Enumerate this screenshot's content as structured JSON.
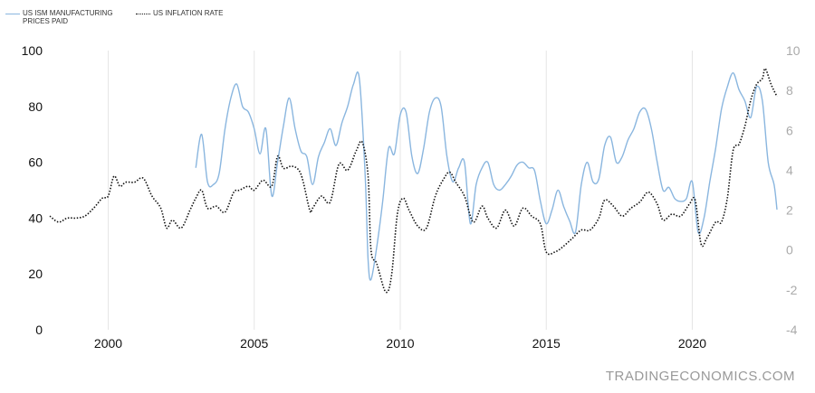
{
  "legend": {
    "series1_label": "US ISM MANUFACTURING PRICES PAID",
    "series2_label": "US INFLATION RATE"
  },
  "watermark": "TRADINGECONOMICS.COM",
  "colors": {
    "series1": "#8ab6df",
    "series2": "#111111",
    "grid": "#e6e6e6"
  },
  "chart_data": {
    "type": "line",
    "title": "",
    "xlabel": "",
    "ylabel": "",
    "xlim": [
      1998,
      2022.9
    ],
    "x_ticks": [
      2000,
      2005,
      2010,
      2015,
      2020
    ],
    "y_left": {
      "ticks": [
        0,
        20,
        40,
        60,
        80,
        100
      ],
      "lim": [
        0,
        100
      ]
    },
    "y_right": {
      "ticks": [
        -4,
        -2,
        0,
        2,
        4,
        6,
        8,
        10
      ],
      "lim": [
        -4,
        10
      ]
    },
    "grid": "vertical",
    "legend_position": "top-left",
    "series": [
      {
        "name": "US ISM MANUFACTURING PRICES PAID",
        "axis": "left",
        "points": [
          [
            2003.0,
            58
          ],
          [
            2003.2,
            70
          ],
          [
            2003.4,
            53
          ],
          [
            2003.6,
            52
          ],
          [
            2003.8,
            56
          ],
          [
            2004.0,
            72
          ],
          [
            2004.2,
            83
          ],
          [
            2004.4,
            88
          ],
          [
            2004.6,
            80
          ],
          [
            2004.8,
            78
          ],
          [
            2005.0,
            72
          ],
          [
            2005.2,
            63
          ],
          [
            2005.4,
            72
          ],
          [
            2005.6,
            48
          ],
          [
            2005.8,
            60
          ],
          [
            2006.0,
            73
          ],
          [
            2006.2,
            83
          ],
          [
            2006.4,
            72
          ],
          [
            2006.6,
            64
          ],
          [
            2006.8,
            62
          ],
          [
            2007.0,
            52
          ],
          [
            2007.2,
            62
          ],
          [
            2007.4,
            67
          ],
          [
            2007.6,
            72
          ],
          [
            2007.8,
            66
          ],
          [
            2008.0,
            74
          ],
          [
            2008.2,
            80
          ],
          [
            2008.4,
            88
          ],
          [
            2008.6,
            90
          ],
          [
            2008.8,
            55
          ],
          [
            2008.9,
            25
          ],
          [
            2009.0,
            18
          ],
          [
            2009.2,
            30
          ],
          [
            2009.4,
            46
          ],
          [
            2009.6,
            65
          ],
          [
            2009.8,
            63
          ],
          [
            2010.0,
            77
          ],
          [
            2010.2,
            78
          ],
          [
            2010.4,
            62
          ],
          [
            2010.6,
            56
          ],
          [
            2010.8,
            65
          ],
          [
            2011.0,
            78
          ],
          [
            2011.2,
            83
          ],
          [
            2011.4,
            80
          ],
          [
            2011.6,
            62
          ],
          [
            2011.8,
            53
          ],
          [
            2012.0,
            58
          ],
          [
            2012.2,
            60
          ],
          [
            2012.4,
            38
          ],
          [
            2012.6,
            52
          ],
          [
            2012.8,
            58
          ],
          [
            2013.0,
            60
          ],
          [
            2013.2,
            52
          ],
          [
            2013.4,
            50
          ],
          [
            2013.6,
            52
          ],
          [
            2013.8,
            55
          ],
          [
            2014.0,
            59
          ],
          [
            2014.2,
            60
          ],
          [
            2014.4,
            58
          ],
          [
            2014.6,
            57
          ],
          [
            2014.8,
            46
          ],
          [
            2015.0,
            38
          ],
          [
            2015.2,
            43
          ],
          [
            2015.4,
            50
          ],
          [
            2015.6,
            44
          ],
          [
            2015.8,
            39
          ],
          [
            2016.0,
            35
          ],
          [
            2016.2,
            52
          ],
          [
            2016.4,
            60
          ],
          [
            2016.6,
            53
          ],
          [
            2016.8,
            54
          ],
          [
            2017.0,
            66
          ],
          [
            2017.2,
            69
          ],
          [
            2017.4,
            60
          ],
          [
            2017.6,
            62
          ],
          [
            2017.8,
            68
          ],
          [
            2018.0,
            72
          ],
          [
            2018.2,
            78
          ],
          [
            2018.4,
            79
          ],
          [
            2018.6,
            72
          ],
          [
            2018.8,
            60
          ],
          [
            2019.0,
            50
          ],
          [
            2019.2,
            51
          ],
          [
            2019.4,
            47
          ],
          [
            2019.6,
            46
          ],
          [
            2019.8,
            47
          ],
          [
            2020.0,
            53
          ],
          [
            2020.2,
            35
          ],
          [
            2020.4,
            40
          ],
          [
            2020.6,
            53
          ],
          [
            2020.8,
            65
          ],
          [
            2021.0,
            79
          ],
          [
            2021.2,
            87
          ],
          [
            2021.4,
            92
          ],
          [
            2021.6,
            86
          ],
          [
            2021.8,
            82
          ],
          [
            2022.0,
            76
          ],
          [
            2022.2,
            87
          ],
          [
            2022.4,
            82
          ],
          [
            2022.6,
            60
          ],
          [
            2022.8,
            52
          ],
          [
            2022.9,
            43
          ]
        ]
      },
      {
        "name": "US INFLATION RATE",
        "axis": "right",
        "points": [
          [
            1998.0,
            1.7
          ],
          [
            1998.3,
            1.4
          ],
          [
            1998.6,
            1.6
          ],
          [
            1998.9,
            1.6
          ],
          [
            1999.2,
            1.7
          ],
          [
            1999.5,
            2.1
          ],
          [
            1999.8,
            2.6
          ],
          [
            2000.0,
            2.7
          ],
          [
            2000.2,
            3.7
          ],
          [
            2000.4,
            3.2
          ],
          [
            2000.6,
            3.4
          ],
          [
            2000.9,
            3.4
          ],
          [
            2001.2,
            3.6
          ],
          [
            2001.5,
            2.7
          ],
          [
            2001.8,
            2.1
          ],
          [
            2002.0,
            1.1
          ],
          [
            2002.2,
            1.5
          ],
          [
            2002.5,
            1.1
          ],
          [
            2002.8,
            2.0
          ],
          [
            2003.0,
            2.6
          ],
          [
            2003.2,
            3.0
          ],
          [
            2003.4,
            2.1
          ],
          [
            2003.7,
            2.2
          ],
          [
            2004.0,
            1.9
          ],
          [
            2004.3,
            2.9
          ],
          [
            2004.5,
            3.0
          ],
          [
            2004.8,
            3.2
          ],
          [
            2005.0,
            3.0
          ],
          [
            2005.3,
            3.5
          ],
          [
            2005.6,
            3.2
          ],
          [
            2005.8,
            4.7
          ],
          [
            2006.0,
            4.1
          ],
          [
            2006.3,
            4.2
          ],
          [
            2006.6,
            3.8
          ],
          [
            2006.9,
            2.0
          ],
          [
            2007.0,
            2.1
          ],
          [
            2007.3,
            2.7
          ],
          [
            2007.6,
            2.4
          ],
          [
            2007.9,
            4.3
          ],
          [
            2008.2,
            4.0
          ],
          [
            2008.5,
            5.0
          ],
          [
            2008.7,
            5.4
          ],
          [
            2008.9,
            3.7
          ],
          [
            2009.0,
            0.0
          ],
          [
            2009.2,
            -0.7
          ],
          [
            2009.5,
            -2.1
          ],
          [
            2009.7,
            -1.3
          ],
          [
            2009.9,
            1.8
          ],
          [
            2010.1,
            2.6
          ],
          [
            2010.3,
            2.0
          ],
          [
            2010.6,
            1.2
          ],
          [
            2010.9,
            1.1
          ],
          [
            2011.2,
            2.7
          ],
          [
            2011.5,
            3.6
          ],
          [
            2011.7,
            3.9
          ],
          [
            2011.9,
            3.4
          ],
          [
            2012.2,
            2.7
          ],
          [
            2012.5,
            1.4
          ],
          [
            2012.8,
            2.2
          ],
          [
            2013.0,
            1.6
          ],
          [
            2013.3,
            1.1
          ],
          [
            2013.6,
            2.0
          ],
          [
            2013.9,
            1.2
          ],
          [
            2014.2,
            2.1
          ],
          [
            2014.5,
            1.7
          ],
          [
            2014.8,
            1.3
          ],
          [
            2015.0,
            -0.1
          ],
          [
            2015.3,
            -0.1
          ],
          [
            2015.6,
            0.2
          ],
          [
            2015.9,
            0.6
          ],
          [
            2016.2,
            1.0
          ],
          [
            2016.5,
            1.0
          ],
          [
            2016.8,
            1.6
          ],
          [
            2017.0,
            2.5
          ],
          [
            2017.3,
            2.2
          ],
          [
            2017.6,
            1.7
          ],
          [
            2017.9,
            2.1
          ],
          [
            2018.2,
            2.4
          ],
          [
            2018.5,
            2.9
          ],
          [
            2018.8,
            2.3
          ],
          [
            2019.0,
            1.5
          ],
          [
            2019.3,
            1.8
          ],
          [
            2019.6,
            1.7
          ],
          [
            2019.9,
            2.3
          ],
          [
            2020.1,
            2.5
          ],
          [
            2020.3,
            0.3
          ],
          [
            2020.5,
            0.6
          ],
          [
            2020.8,
            1.4
          ],
          [
            2021.0,
            1.4
          ],
          [
            2021.2,
            2.6
          ],
          [
            2021.4,
            5.0
          ],
          [
            2021.6,
            5.3
          ],
          [
            2021.8,
            6.2
          ],
          [
            2022.0,
            7.5
          ],
          [
            2022.2,
            8.3
          ],
          [
            2022.4,
            8.6
          ],
          [
            2022.5,
            9.1
          ],
          [
            2022.7,
            8.3
          ],
          [
            2022.9,
            7.7
          ]
        ]
      }
    ]
  }
}
